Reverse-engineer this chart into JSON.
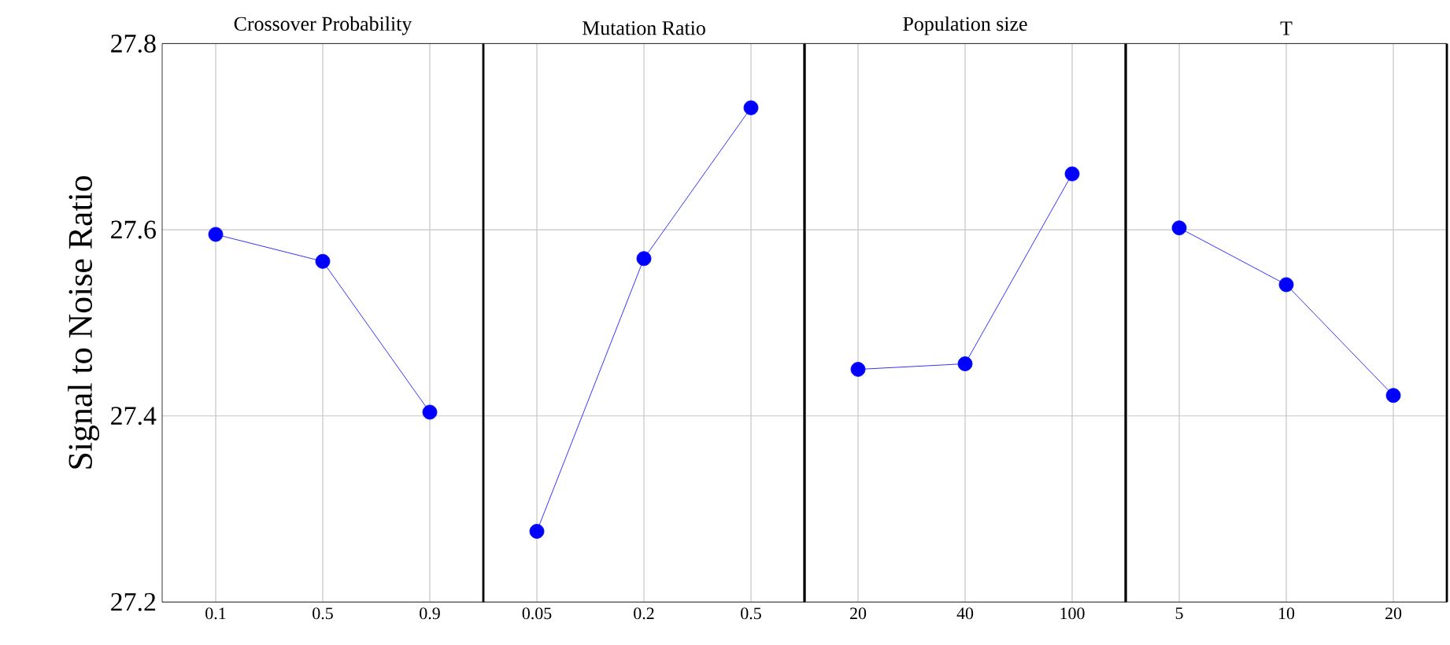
{
  "chart_data": [
    {
      "type": "line",
      "title": "Crossover Probability",
      "ylabel": "Signal to Noise Ratio",
      "categories": [
        "0.1",
        "0.5",
        "0.9"
      ],
      "series": [
        {
          "color": "#0000ff",
          "values": [
            27.595,
            27.566,
            27.404
          ]
        }
      ],
      "ylim": [
        27.2,
        27.8
      ],
      "yticks": [
        27.2,
        27.4,
        27.6,
        27.8
      ],
      "grid": true,
      "marker": "circle"
    },
    {
      "type": "line",
      "title": "Mutation Ratio",
      "categories": [
        "0.05",
        "0.2",
        "0.5"
      ],
      "series": [
        {
          "color": "#0000ff",
          "values": [
            27.276,
            27.569,
            27.731
          ]
        }
      ],
      "ylim": [
        27.2,
        27.8
      ],
      "yticks": [
        27.2,
        27.4,
        27.6,
        27.8
      ],
      "grid": true,
      "marker": "circle",
      "tick_labels": "x"
    },
    {
      "type": "line",
      "title": "Population size",
      "categories": [
        "20",
        "40",
        "100"
      ],
      "series": [
        {
          "color": "#0000ff",
          "values": [
            27.45,
            27.456,
            27.66
          ]
        }
      ],
      "ylim": [
        27.2,
        27.8
      ],
      "yticks": [
        27.2,
        27.4,
        27.6,
        27.8
      ],
      "grid": true,
      "marker": "circle",
      "tick_labels": "x"
    },
    {
      "type": "line",
      "title": "T",
      "categories": [
        "5",
        "10",
        "20"
      ],
      "series": [
        {
          "color": "#0000ff",
          "values": [
            27.602,
            27.541,
            27.422
          ]
        }
      ],
      "ylim": [
        27.2,
        27.8
      ],
      "yticks": [
        27.2,
        27.4,
        27.6,
        27.8
      ],
      "grid": true,
      "marker": "circle",
      "tick_labels": "x"
    }
  ]
}
